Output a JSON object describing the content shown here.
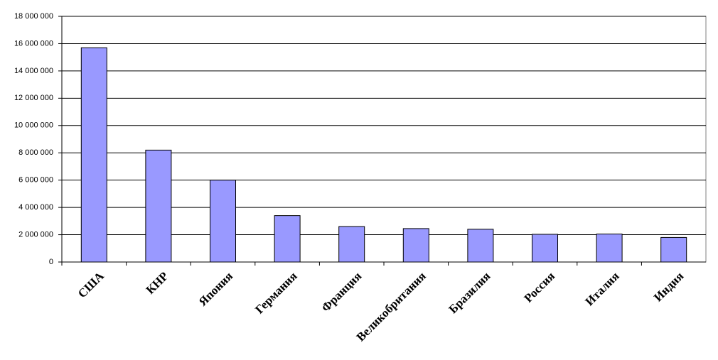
{
  "chart_data": {
    "type": "bar",
    "categories": [
      "США",
      "КНР",
      "Япония",
      "Германия",
      "Франция",
      "Великобритания",
      "Бразилия",
      "Россия",
      "Италия",
      "Индия"
    ],
    "values": [
      15700000,
      8200000,
      6000000,
      3400000,
      2600000,
      2450000,
      2400000,
      2030000,
      2050000,
      1800000
    ],
    "color": "#9999ff",
    "ylim": [
      0,
      18000000
    ],
    "yticks": [
      0,
      {
        "value": 2000000,
        "label": "2 000 000"
      },
      {
        "value": 4000000,
        "label": "4 000 000"
      },
      {
        "value": 6000000,
        "label": "6 000 000"
      },
      {
        "value": 8000000,
        "label": "8 000 000"
      },
      {
        "value": 10000000,
        "label": "10 000 000"
      },
      {
        "value": 12000000,
        "label": "12 000 000"
      },
      {
        "value": 14000000,
        "label": "14 000 000"
      },
      {
        "value": 16000000,
        "label": "16 000 000"
      },
      {
        "value": 18000000,
        "label": "18 000 000"
      }
    ],
    "grid": true
  }
}
